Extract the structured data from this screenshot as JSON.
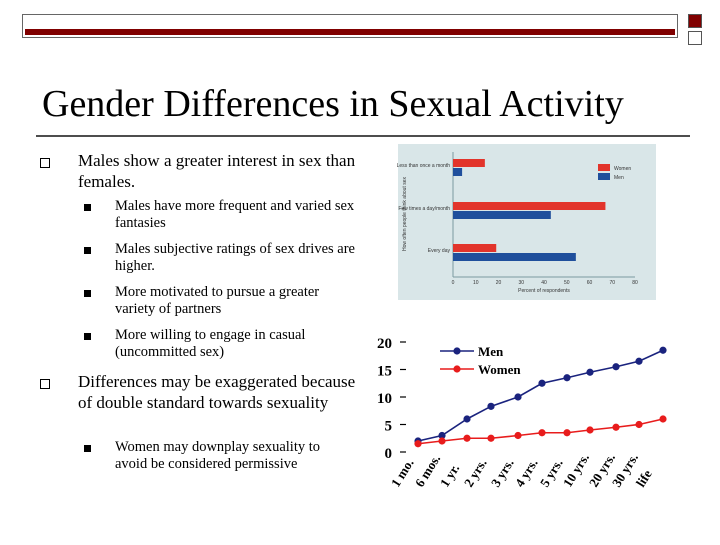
{
  "slide": {
    "title": "Gender Differences in Sexual Activity",
    "accent_color": "#800000",
    "bullets": [
      {
        "text": "Males show a greater interest in sex than females.",
        "sub": [
          "Males have more frequent and varied sex fantasies",
          "Males subjective ratings of sex drives are higher.",
          "More motivated to pursue a greater variety of partners",
          "More willing to engage in casual (uncommitted sex)"
        ]
      },
      {
        "text": "Differences may be exaggerated because of double standard towards sexuality",
        "sub": [
          "Women may downplay sexuality to avoid be considered permissive"
        ]
      }
    ]
  },
  "chart_data": [
    {
      "type": "bar",
      "orientation": "horizontal",
      "ylabel": "How often people think about sex",
      "xlabel": "Percent of respondents",
      "categories": [
        "Less than once a month",
        "Few times a day/month",
        "Every day"
      ],
      "series": [
        {
          "name": "Women",
          "color": "#e2342b",
          "values": [
            14,
            67,
            19
          ]
        },
        {
          "name": "Men",
          "color": "#1f4f9c",
          "values": [
            4,
            43,
            54
          ]
        }
      ],
      "xticks": [
        "0",
        "10",
        "20",
        "30",
        "40",
        "50",
        "60",
        "70",
        "80"
      ],
      "xlim": [
        0,
        80
      ],
      "legend": "top-right",
      "background": "#d9e6e8"
    },
    {
      "type": "line",
      "x": [
        "1 mo.",
        "6 mos.",
        "1 yr.",
        "2 yrs.",
        "3 yrs.",
        "4 yrs.",
        "5 yrs.",
        "10 yrs.",
        "20 yrs.",
        "30 yrs.",
        "life"
      ],
      "series": [
        {
          "name": "Men",
          "color": "#1a237e",
          "values": [
            2,
            3,
            6,
            8.3,
            10,
            12.5,
            13.5,
            14.5,
            15.5,
            16.5,
            18.5
          ]
        },
        {
          "name": "Women",
          "color": "#e81c1c",
          "values": [
            1.5,
            2,
            2.5,
            2.5,
            3,
            3.5,
            3.5,
            4,
            4.5,
            5,
            6
          ]
        }
      ],
      "yticks": [
        "0",
        "5",
        "10",
        "15",
        "20"
      ],
      "ylim": [
        0,
        20
      ],
      "legend": "top-left"
    }
  ]
}
